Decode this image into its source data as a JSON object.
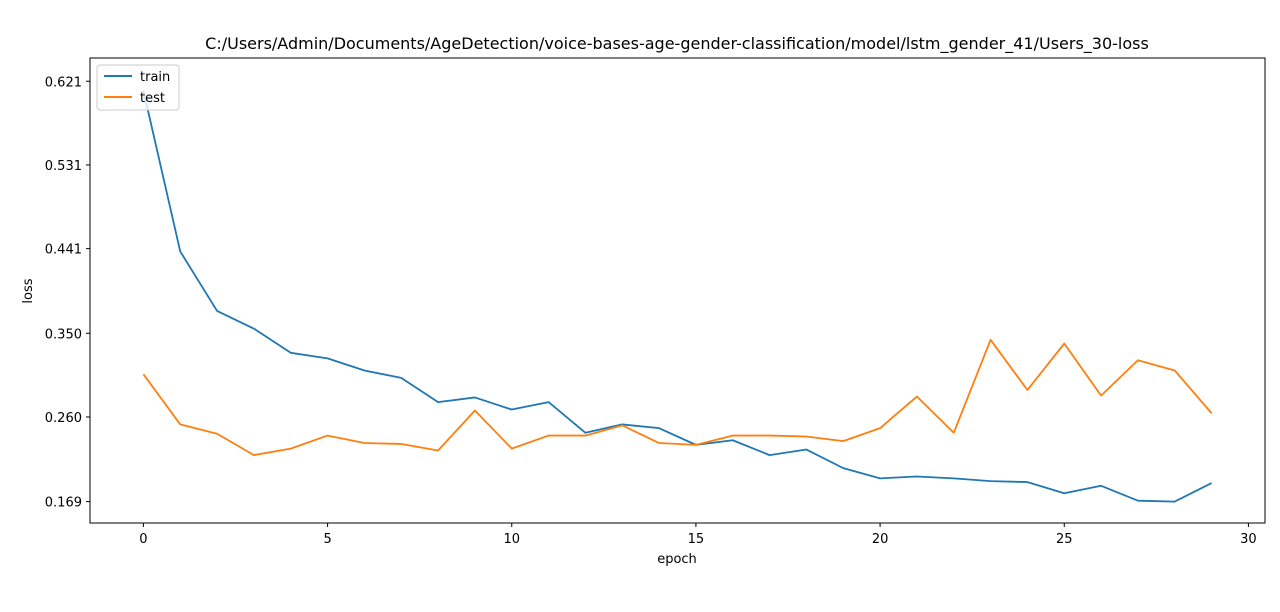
{
  "chart_data": {
    "type": "line",
    "title": "C:/Users/Admin/Documents/AgeDetection/voice-bases-age-gender-classification/model/lstm_gender_41/Users_30-loss",
    "xlabel": "epoch",
    "ylabel": "loss",
    "xlim": [
      -1.45,
      30.45
    ],
    "ylim": [
      0.146,
      0.646
    ],
    "xticks": [
      0,
      5,
      10,
      15,
      20,
      25,
      30
    ],
    "yticks": [
      0.169,
      0.26,
      0.35,
      0.441,
      0.531,
      0.621
    ],
    "ytick_labels": [
      "0.169",
      "0.260",
      "0.350",
      "0.441",
      "0.531",
      "0.621"
    ],
    "grid": false,
    "legend_position": "top-left",
    "x": [
      0,
      1,
      2,
      3,
      4,
      5,
      6,
      7,
      8,
      9,
      10,
      11,
      12,
      13,
      14,
      15,
      16,
      17,
      18,
      19,
      20,
      21,
      22,
      23,
      24,
      25,
      26,
      27,
      28,
      29
    ],
    "series": [
      {
        "name": "train",
        "color": "#1f77b4",
        "values": [
          0.611,
          0.438,
          0.374,
          0.355,
          0.329,
          0.323,
          0.31,
          0.302,
          0.276,
          0.281,
          0.268,
          0.276,
          0.243,
          0.252,
          0.248,
          0.23,
          0.235,
          0.219,
          0.225,
          0.205,
          0.194,
          0.196,
          0.194,
          0.191,
          0.19,
          0.178,
          0.186,
          0.17,
          0.169,
          0.189
        ]
      },
      {
        "name": "test",
        "color": "#ff7f0e",
        "values": [
          0.306,
          0.252,
          0.242,
          0.219,
          0.226,
          0.24,
          0.232,
          0.231,
          0.224,
          0.267,
          0.226,
          0.24,
          0.24,
          0.251,
          0.232,
          0.23,
          0.24,
          0.24,
          0.239,
          0.234,
          0.248,
          0.282,
          0.243,
          0.343,
          0.289,
          0.339,
          0.283,
          0.321,
          0.31,
          0.264
        ]
      }
    ]
  }
}
